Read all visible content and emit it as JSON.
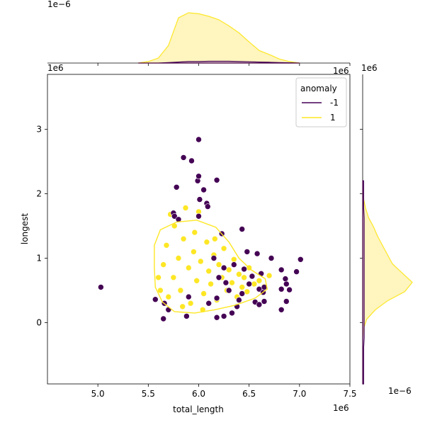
{
  "chart_data": {
    "type": "scatter",
    "xlabel": "total_length",
    "ylabel": "longest",
    "x_offset_label": "1e6",
    "y_offset_label": "1e6",
    "top_marginal_offset_label": "1e−6",
    "right_marginal_x_offset_label": "1e6",
    "right_marginal_offset_label": "1e−6",
    "xlim": [
      4500000,
      7500000
    ],
    "ylim": [
      -950000,
      3850000
    ],
    "x_ticks": [
      5000000,
      5500000,
      6000000,
      6500000,
      7000000,
      7500000
    ],
    "x_tick_labels": [
      "5.0",
      "5.5",
      "6.0",
      "6.5",
      "7.0",
      "7.5"
    ],
    "y_ticks": [
      0,
      1000000,
      2000000,
      3000000
    ],
    "y_tick_labels": [
      "0",
      "1",
      "2",
      "3"
    ],
    "grid": false,
    "legend": {
      "title": "anomaly",
      "placement": "top-right",
      "entries": [
        "-1",
        "1"
      ]
    },
    "colors": {
      "-1": "#440154",
      "1": "#fde725",
      "fill_1": "#fef5bf",
      "fill_-1": "#c9a9cf",
      "edge": "#ffffff"
    },
    "series": [
      {
        "name": "-1",
        "points": [
          [
            5030000,
            550000
          ],
          [
            5570000,
            360000
          ],
          [
            5650000,
            60000
          ],
          [
            5660000,
            300000
          ],
          [
            5700000,
            200000
          ],
          [
            5750000,
            1700000
          ],
          [
            5760000,
            1650000
          ],
          [
            5780000,
            2100000
          ],
          [
            5800000,
            1600000
          ],
          [
            5850000,
            2560000
          ],
          [
            5880000,
            100000
          ],
          [
            5930000,
            2510000
          ],
          [
            5990000,
            2200000
          ],
          [
            6000000,
            2840000
          ],
          [
            6000000,
            2270000
          ],
          [
            6010000,
            1910000
          ],
          [
            6000000,
            1650000
          ],
          [
            6050000,
            2060000
          ],
          [
            6080000,
            1850000
          ],
          [
            6090000,
            1800000
          ],
          [
            6180000,
            2210000
          ],
          [
            6180000,
            380000
          ],
          [
            6180000,
            80000
          ],
          [
            6230000,
            1380000
          ],
          [
            6250000,
            100000
          ],
          [
            6330000,
            150000
          ],
          [
            6380000,
            250000
          ],
          [
            6430000,
            1450000
          ],
          [
            6430000,
            450000
          ],
          [
            6450000,
            830000
          ],
          [
            6480000,
            1100000
          ],
          [
            6500000,
            600000
          ],
          [
            6560000,
            320000
          ],
          [
            6580000,
            1070000
          ],
          [
            6600000,
            520000
          ],
          [
            6600000,
            280000
          ],
          [
            6620000,
            760000
          ],
          [
            6640000,
            470000
          ],
          [
            6650000,
            330000
          ],
          [
            6650000,
            550000
          ],
          [
            6720000,
            1000000
          ],
          [
            6820000,
            820000
          ],
          [
            6820000,
            520000
          ],
          [
            6820000,
            200000
          ],
          [
            6860000,
            680000
          ],
          [
            6870000,
            330000
          ],
          [
            6870000,
            600000
          ],
          [
            6900000,
            510000
          ],
          [
            6970000,
            790000
          ],
          [
            7010000,
            980000
          ],
          [
            5900000,
            400000
          ],
          [
            6100000,
            300000
          ],
          [
            6300000,
            500000
          ],
          [
            6350000,
            900000
          ],
          [
            6200000,
            700000
          ],
          [
            6270000,
            620000
          ],
          [
            6400000,
            350000
          ],
          [
            6530000,
            720000
          ],
          [
            6150000,
            1000000
          ],
          [
            6250000,
            850000
          ]
        ]
      },
      {
        "name": "1",
        "points": [
          [
            5650000,
            900000
          ],
          [
            5680000,
            1200000
          ],
          [
            5700000,
            400000
          ],
          [
            5720000,
            1680000
          ],
          [
            5750000,
            700000
          ],
          [
            5800000,
            1000000
          ],
          [
            5820000,
            500000
          ],
          [
            5850000,
            1300000
          ],
          [
            5870000,
            1780000
          ],
          [
            5900000,
            850000
          ],
          [
            5920000,
            300000
          ],
          [
            5950000,
            1100000
          ],
          [
            5980000,
            650000
          ],
          [
            6000000,
            1720000
          ],
          [
            6020000,
            950000
          ],
          [
            6050000,
            450000
          ],
          [
            6080000,
            1250000
          ],
          [
            6100000,
            800000
          ],
          [
            6120000,
            600000
          ],
          [
            6150000,
            1050000
          ],
          [
            6180000,
            350000
          ],
          [
            6200000,
            900000
          ],
          [
            6230000,
            700000
          ],
          [
            6250000,
            1150000
          ],
          [
            6280000,
            500000
          ],
          [
            6300000,
            820000
          ],
          [
            6330000,
            620000
          ],
          [
            6350000,
            980000
          ],
          [
            6380000,
            400000
          ],
          [
            6400000,
            750000
          ],
          [
            6430000,
            550000
          ],
          [
            6450000,
            700000
          ],
          [
            6480000,
            480000
          ],
          [
            6500000,
            850000
          ],
          [
            6550000,
            600000
          ],
          [
            6600000,
            650000
          ],
          [
            6650000,
            560000
          ],
          [
            6700000,
            730000
          ],
          [
            5600000,
            700000
          ],
          [
            5620000,
            500000
          ],
          [
            5760000,
            1500000
          ],
          [
            5840000,
            250000
          ],
          [
            5960000,
            1400000
          ],
          [
            6040000,
            200000
          ],
          [
            6160000,
            1300000
          ]
        ]
      }
    ],
    "density_contour_1": [
      [
        5560000,
        850000
      ],
      [
        5570000,
        550000
      ],
      [
        5640000,
        320000
      ],
      [
        5760000,
        170000
      ],
      [
        5960000,
        150000
      ],
      [
        6160000,
        200000
      ],
      [
        6360000,
        270000
      ],
      [
        6560000,
        380000
      ],
      [
        6680000,
        520000
      ],
      [
        6660000,
        680000
      ],
      [
        6520000,
        820000
      ],
      [
        6400000,
        1000000
      ],
      [
        6300000,
        1250000
      ],
      [
        6170000,
        1480000
      ],
      [
        5980000,
        1590000
      ],
      [
        5780000,
        1560000
      ],
      [
        5620000,
        1440000
      ],
      [
        5560000,
        1200000
      ]
    ],
    "top_marginal": {
      "x_start": 5400000,
      "x_end": 7000000,
      "series_1_heights": [
        0,
        0.03,
        0.1,
        0.35,
        0.9,
        1.0,
        0.98,
        0.93,
        0.86,
        0.74,
        0.6,
        0.42,
        0.25,
        0.17,
        0.08,
        0.03,
        0
      ],
      "series_minus1_heights": [
        0,
        0,
        0,
        0.01,
        0.02,
        0.03,
        0.03,
        0.035,
        0.035,
        0.035,
        0.03,
        0.025,
        0.02,
        0.015,
        0.01,
        0.005,
        0
      ]
    },
    "right_marginal": {
      "y_start": -950000,
      "y_end": 2200000,
      "series_1_heights": [
        0,
        0,
        0,
        0,
        0,
        0,
        0.02,
        0.08,
        0.25,
        0.5,
        0.85,
        1.0,
        0.8,
        0.6,
        0.5,
        0.4,
        0.3,
        0.22,
        0.12,
        0.06,
        0.02,
        0,
        0
      ],
      "series_minus1_heights": [
        0.02,
        0.02,
        0.02,
        0.02,
        0.02,
        0.03,
        0.03,
        0.03,
        0.03,
        0.03,
        0.03,
        0.03,
        0.03,
        0.03,
        0.03,
        0.03,
        0.03,
        0.03,
        0.03,
        0.02,
        0.02,
        0.02,
        0.02
      ]
    }
  }
}
